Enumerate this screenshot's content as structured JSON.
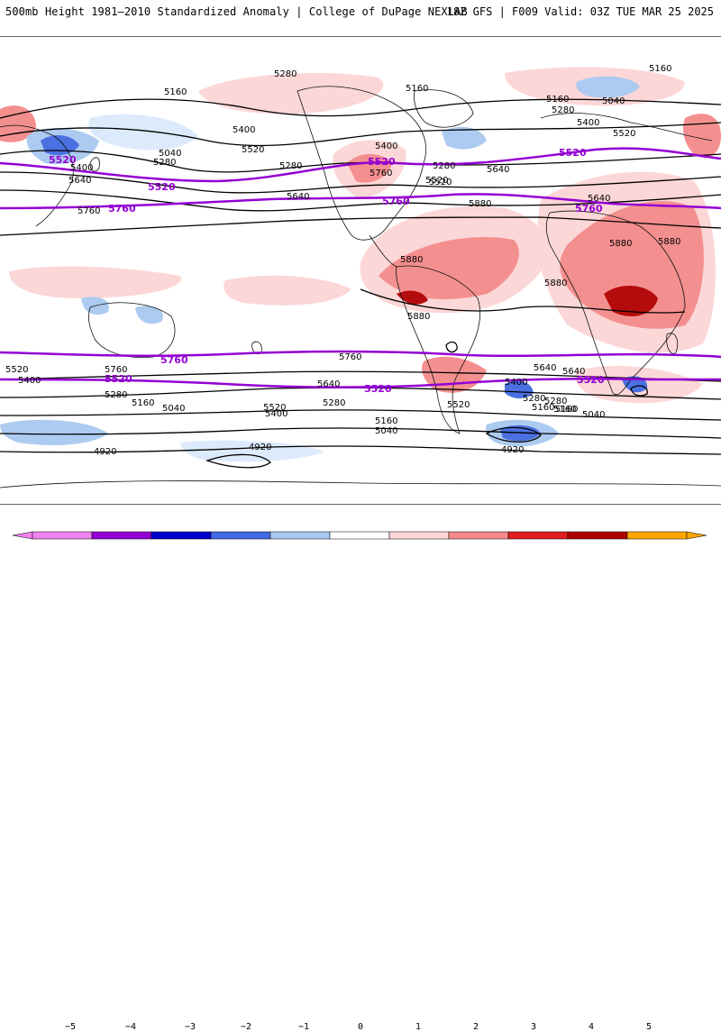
{
  "header": {
    "title_left": "500mb Height 1981–2010 Standardized Anomaly | College of DuPage NEXLAB",
    "title_right": "18Z GFS | F009 Valid: 03Z TUE MAR 25 2025"
  },
  "map": {
    "highlight_contours": [
      "5520",
      "5760"
    ],
    "contour_color_black": "#000000",
    "contour_color_highlight": "#9400d3",
    "coast_color": "#111111",
    "labels_black": [
      "5280",
      "5160",
      "5160",
      "5160",
      "5040",
      "5400",
      "5520",
      "5040",
      "5280",
      "5400",
      "5640",
      "5160",
      "5280",
      "5280",
      "5400",
      "5520",
      "5640",
      "5280",
      "5400",
      "5520",
      "5640",
      "5760",
      "5640",
      "5880",
      "5880",
      "5880",
      "5880",
      "5880",
      "5880",
      "5520",
      "5760",
      "5400",
      "5280",
      "5160",
      "5040",
      "4920",
      "5640",
      "5520",
      "5280",
      "5400",
      "5160",
      "5040",
      "5160",
      "5640",
      "5520",
      "5280",
      "5160",
      "5040",
      "4920",
      "4920",
      "5520",
      "5760",
      "5760",
      "5640",
      "5400",
      "5280",
      "5160"
    ],
    "labels_highlight": [
      "5520",
      "5520",
      "5520",
      "5520",
      "5760",
      "5760",
      "5760",
      "5760",
      "5520",
      "5520",
      "5520"
    ]
  },
  "colorbar": {
    "ticks": [
      "−5",
      "−4",
      "−3",
      "−2",
      "−1",
      "0",
      "1",
      "2",
      "3",
      "4",
      "5"
    ],
    "colors": [
      "#ee82ee",
      "#9400d3",
      "#0000cd",
      "#4169e1",
      "#a9c8f0",
      "#dbe9fb",
      "#ffffff",
      "#fcd5d5",
      "#f48a8a",
      "#e02020",
      "#b00000",
      "#ffa500"
    ]
  }
}
